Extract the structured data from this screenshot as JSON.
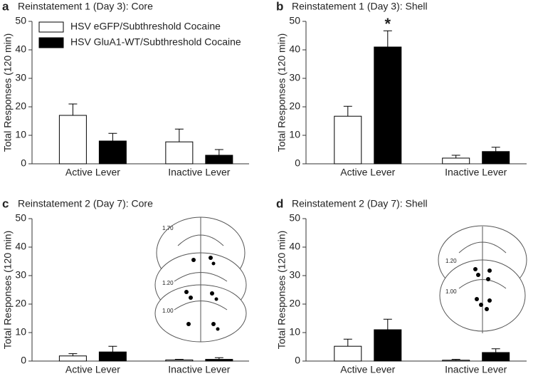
{
  "chart_data": [
    {
      "type": "bar",
      "panel": "a",
      "title": "Reinstatement 1 (Day 3): Core",
      "ylabel": "Total Responses (120 min)",
      "categories": [
        "Active Lever",
        "Inactive Lever"
      ],
      "series": [
        {
          "name": "HSV eGFP/Subthreshold Cocaine",
          "color": "#ffffff",
          "values": [
            17,
            7.7
          ],
          "errors": [
            4,
            4.5
          ]
        },
        {
          "name": "HSV GluA1-WT/Subthreshold Cocaine",
          "color": "#000000",
          "values": [
            8,
            3
          ],
          "errors": [
            2.7,
            2
          ]
        }
      ],
      "ylim": [
        0,
        50
      ],
      "yticks": [
        0,
        10,
        20,
        30,
        40,
        50
      ],
      "legend": "upper left"
    },
    {
      "type": "bar",
      "panel": "b",
      "title": "Reinstatement 1 (Day 3): Shell",
      "ylabel": "Total Responses (120 min)",
      "categories": [
        "Active Lever",
        "Inactive Lever"
      ],
      "series": [
        {
          "color": "#ffffff",
          "values": [
            16.7,
            2
          ],
          "errors": [
            3.5,
            1
          ]
        },
        {
          "color": "#000000",
          "values": [
            41,
            4.3
          ],
          "errors": [
            5.7,
            1.5
          ]
        }
      ],
      "ylim": [
        0,
        50
      ],
      "yticks": [
        0,
        10,
        20,
        30,
        40,
        50
      ],
      "annotations": [
        {
          "text": "*",
          "series": 1,
          "category": 0
        }
      ]
    },
    {
      "type": "bar",
      "panel": "c",
      "title": "Reinstatement 2 (Day 7): Core",
      "ylabel": "Total Responses (120 min)",
      "categories": [
        "Active Lever",
        "Inactive Lever"
      ],
      "series": [
        {
          "color": "#ffffff",
          "values": [
            1.8,
            0.4
          ],
          "errors": [
            0.8,
            0.2
          ]
        },
        {
          "color": "#000000",
          "values": [
            3.2,
            0.6
          ],
          "errors": [
            2,
            0.6
          ]
        }
      ],
      "ylim": [
        0,
        50
      ],
      "yticks": [
        0,
        10,
        20,
        30,
        40,
        50
      ],
      "section_labels": [
        "1.70",
        "1.20",
        "1.00"
      ]
    },
    {
      "type": "bar",
      "panel": "d",
      "title": "Reinstatement 2 (Day 7): Shell",
      "ylabel": "Total Responses (120 min)",
      "categories": [
        "Active Lever",
        "Inactive Lever"
      ],
      "series": [
        {
          "color": "#ffffff",
          "values": [
            5.2,
            0.3
          ],
          "errors": [
            2.5,
            0.3
          ]
        },
        {
          "color": "#000000",
          "values": [
            11,
            3
          ],
          "errors": [
            3.7,
            1.3
          ]
        }
      ],
      "ylim": [
        0,
        50
      ],
      "yticks": [
        0,
        10,
        20,
        30,
        40,
        50
      ],
      "section_labels": [
        "1.20",
        "1.00"
      ]
    }
  ]
}
